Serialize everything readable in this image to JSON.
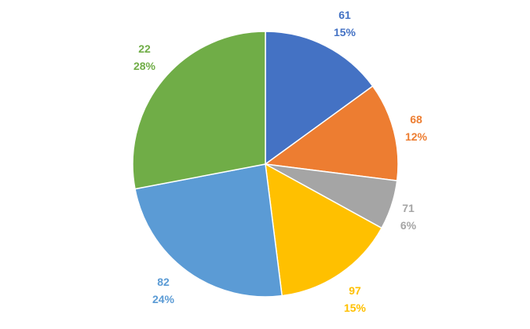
{
  "chart_data": {
    "type": "pie",
    "title": "",
    "start_angle_deg": 0,
    "direction": "clockwise",
    "slices": [
      {
        "label": "61",
        "value": 15,
        "percent_label": "15%",
        "color": "#4472C4"
      },
      {
        "label": "68",
        "value": 12,
        "percent_label": "12%",
        "color": "#ED7D31"
      },
      {
        "label": "71",
        "value": 6,
        "percent_label": "6%",
        "color": "#A5A5A5"
      },
      {
        "label": "97",
        "value": 15,
        "percent_label": "15%",
        "color": "#FFC000"
      },
      {
        "label": "82",
        "value": 24,
        "percent_label": "24%",
        "color": "#5B9BD5"
      },
      {
        "label": "22",
        "value": 28,
        "percent_label": "28%",
        "color": "#70AD47"
      }
    ],
    "legend": "none",
    "slice_border_color": "#FFFFFF"
  }
}
